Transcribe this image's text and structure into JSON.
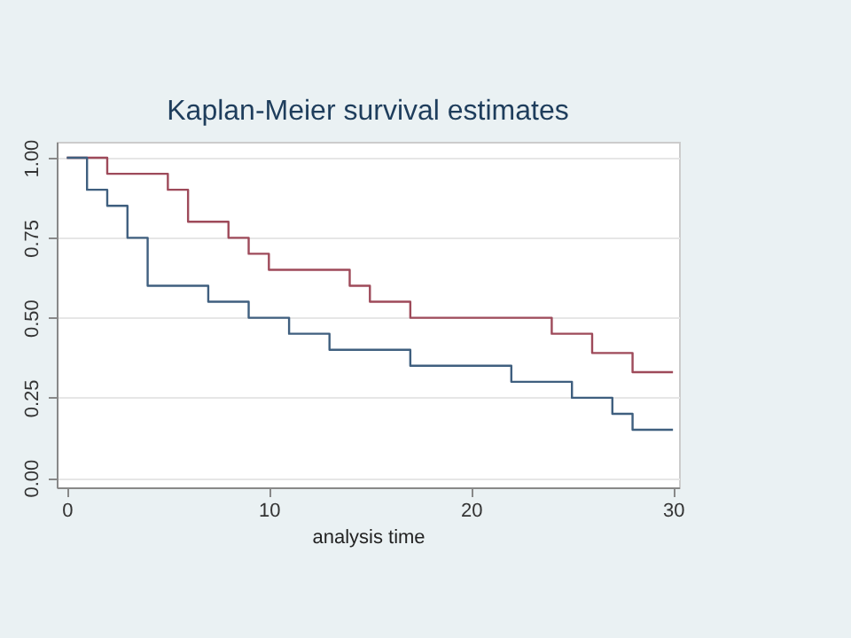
{
  "chart_data": {
    "type": "step",
    "title": "Kaplan-Meier survival estimates",
    "xlabel": "analysis time",
    "series": [
      {
        "color": "#9e4a5a",
        "x": [
          0,
          2,
          5,
          6,
          8,
          9,
          10,
          14,
          15,
          17,
          24,
          26,
          28,
          30
        ],
        "values": [
          1.0,
          0.95,
          0.9,
          0.8,
          0.75,
          0.7,
          0.65,
          0.6,
          0.55,
          0.5,
          0.45,
          0.39,
          0.33,
          0.33
        ]
      },
      {
        "color": "#3f5f7f",
        "x": [
          0,
          1,
          2,
          3,
          4,
          7,
          9,
          11,
          13,
          17,
          22,
          25,
          27,
          28,
          30
        ],
        "values": [
          1.0,
          0.9,
          0.85,
          0.75,
          0.6,
          0.55,
          0.5,
          0.45,
          0.4,
          0.35,
          0.3,
          0.25,
          0.2,
          0.15,
          0.15
        ]
      }
    ],
    "xlim": [
      -0.5,
      30.3
    ],
    "ylim": [
      -0.03,
      1.05
    ],
    "xticks": [
      0,
      10,
      20,
      30
    ],
    "yticks": [
      {
        "value": 0,
        "label": "0.00"
      },
      {
        "value": 0.25,
        "label": "0.25"
      },
      {
        "value": 0.5,
        "label": "0.50"
      },
      {
        "value": 0.75,
        "label": "0.75"
      },
      {
        "value": 1,
        "label": "1.00"
      }
    ],
    "grid": "y",
    "marker": "none",
    "line_style": "solid"
  }
}
